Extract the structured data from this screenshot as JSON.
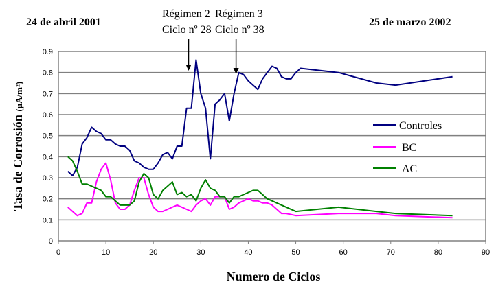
{
  "chart_data": {
    "type": "line",
    "title": "",
    "xlabel": "Numero de Ciclos",
    "ylabel": "Tasa de Corrosión",
    "ylabel_unit": "(µA/m²)",
    "xlim": [
      0,
      90
    ],
    "ylim": [
      0,
      0.9
    ],
    "xticks": [
      0,
      10,
      20,
      30,
      40,
      50,
      60,
      70,
      80,
      90
    ],
    "yticks": [
      "0",
      "0.1",
      "0.2",
      "0.3",
      "0.4",
      "0.5",
      "0.6",
      "0.7",
      "0.8",
      "0.9"
    ],
    "grid": "horizontal",
    "legend_position": "right",
    "annotations": {
      "start_date": "24 de abril 2001",
      "end_date": "25 de marzo 2002",
      "regime2_line1": "Régimen 2",
      "regime2_line2": "Ciclo nº 28",
      "regime2_x": 28,
      "regime3_line1": "Régimen 3",
      "regime3_line2": "Ciclo nº 38",
      "regime3_x": 38
    },
    "series": [
      {
        "name": "Controles",
        "color": "#000080",
        "x": [
          2,
          3,
          4,
          5,
          6,
          7,
          8,
          9,
          10,
          11,
          12,
          13,
          14,
          15,
          16,
          17,
          18,
          19,
          20,
          21,
          22,
          23,
          24,
          25,
          26,
          27,
          28,
          29,
          30,
          31,
          32,
          33,
          34,
          35,
          36,
          37,
          38,
          39,
          40,
          41,
          42,
          43,
          44,
          45,
          46,
          47,
          48,
          49,
          50,
          51,
          59,
          67,
          71,
          83
        ],
        "y": [
          0.33,
          0.31,
          0.35,
          0.46,
          0.49,
          0.54,
          0.52,
          0.51,
          0.48,
          0.48,
          0.46,
          0.45,
          0.45,
          0.43,
          0.38,
          0.37,
          0.35,
          0.34,
          0.34,
          0.37,
          0.41,
          0.42,
          0.39,
          0.45,
          0.45,
          0.63,
          0.63,
          0.86,
          0.7,
          0.63,
          0.39,
          0.65,
          0.67,
          0.7,
          0.57,
          0.7,
          0.8,
          0.79,
          0.76,
          0.74,
          0.72,
          0.77,
          0.8,
          0.83,
          0.82,
          0.78,
          0.77,
          0.77,
          0.8,
          0.82,
          0.8,
          0.75,
          0.74,
          0.78
        ]
      },
      {
        "name": "BC",
        "color": "#ff00ff",
        "x": [
          2,
          3,
          4,
          5,
          6,
          7,
          8,
          9,
          10,
          11,
          12,
          13,
          14,
          15,
          16,
          17,
          18,
          19,
          20,
          21,
          22,
          23,
          24,
          25,
          26,
          27,
          28,
          29,
          30,
          31,
          32,
          33,
          34,
          35,
          36,
          37,
          38,
          39,
          40,
          41,
          42,
          43,
          44,
          45,
          46,
          47,
          48,
          50,
          59,
          67,
          71,
          83
        ],
        "y": [
          0.16,
          0.14,
          0.12,
          0.13,
          0.18,
          0.18,
          0.28,
          0.34,
          0.37,
          0.29,
          0.18,
          0.15,
          0.15,
          0.17,
          0.24,
          0.3,
          0.3,
          0.22,
          0.16,
          0.14,
          0.14,
          0.15,
          0.16,
          0.17,
          0.16,
          0.15,
          0.14,
          0.17,
          0.19,
          0.2,
          0.17,
          0.21,
          0.21,
          0.21,
          0.15,
          0.16,
          0.18,
          0.19,
          0.2,
          0.19,
          0.19,
          0.18,
          0.18,
          0.17,
          0.15,
          0.13,
          0.13,
          0.12,
          0.13,
          0.13,
          0.12,
          0.11
        ]
      },
      {
        "name": "AC",
        "color": "#008000",
        "x": [
          2,
          3,
          4,
          5,
          6,
          7,
          8,
          9,
          10,
          11,
          12,
          13,
          14,
          15,
          16,
          17,
          18,
          19,
          20,
          21,
          22,
          23,
          24,
          25,
          26,
          27,
          28,
          29,
          30,
          31,
          32,
          33,
          34,
          35,
          36,
          37,
          38,
          39,
          40,
          41,
          42,
          43,
          44,
          45,
          46,
          48,
          50,
          59,
          67,
          71,
          83
        ],
        "y": [
          0.4,
          0.38,
          0.33,
          0.27,
          0.27,
          0.26,
          0.25,
          0.24,
          0.21,
          0.21,
          0.19,
          0.17,
          0.17,
          0.17,
          0.19,
          0.28,
          0.32,
          0.3,
          0.22,
          0.2,
          0.24,
          0.26,
          0.28,
          0.22,
          0.23,
          0.21,
          0.22,
          0.19,
          0.25,
          0.29,
          0.25,
          0.24,
          0.21,
          0.21,
          0.18,
          0.21,
          0.21,
          0.22,
          0.23,
          0.24,
          0.24,
          0.22,
          0.2,
          0.19,
          0.18,
          0.16,
          0.14,
          0.16,
          0.14,
          0.13,
          0.12
        ]
      }
    ]
  }
}
